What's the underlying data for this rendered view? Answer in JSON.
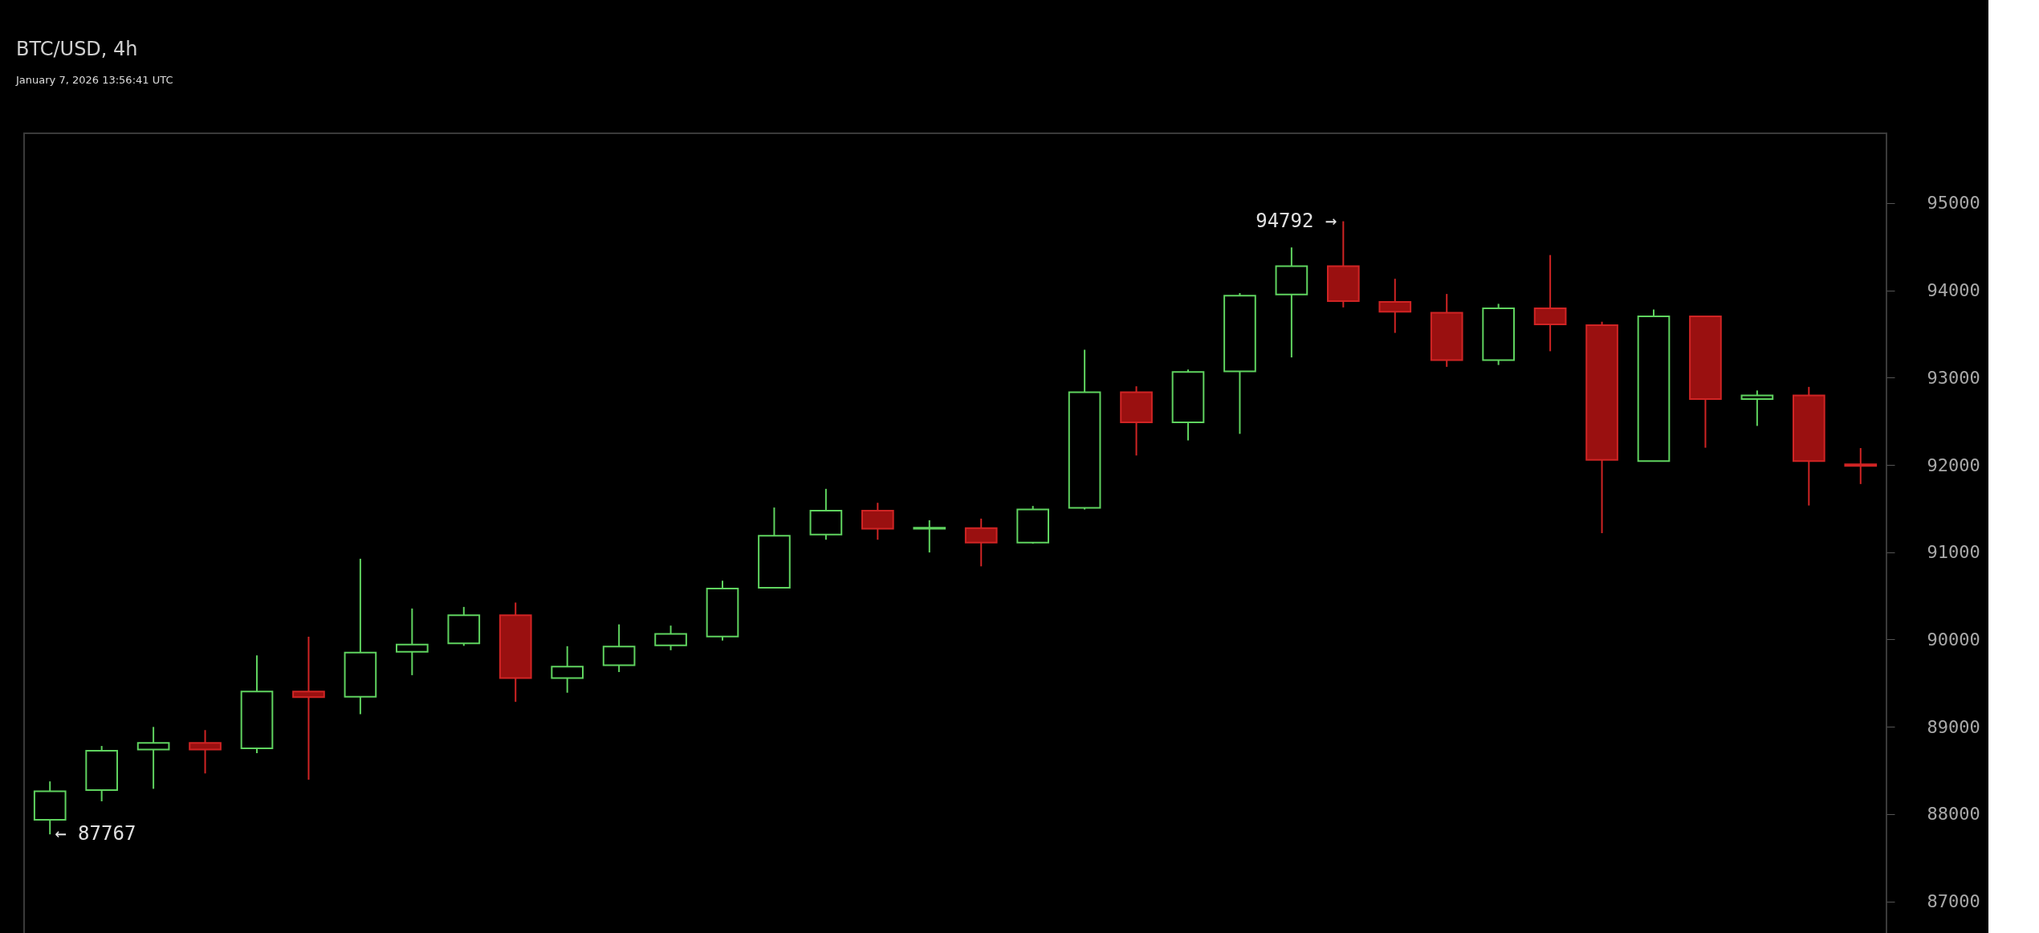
{
  "chart_data": {
    "type": "candlestick",
    "title": "BTC/USD, 4h",
    "categories": [
      null,
      null,
      null,
      null,
      null,
      null,
      null,
      null,
      null,
      null,
      null,
      null,
      null,
      null,
      null,
      null,
      null,
      null,
      null,
      null,
      null,
      null,
      null,
      null,
      null,
      null,
      null,
      null,
      null,
      null,
      null,
      null,
      null,
      null,
      null,
      null
    ],
    "ohlc": [
      [
        87933,
        88374,
        87767,
        88261
      ],
      [
        88274,
        88780,
        88146,
        88725
      ],
      [
        88739,
        88998,
        88289,
        88816
      ],
      [
        88816,
        88962,
        88465,
        88739
      ],
      [
        88752,
        89818,
        88698,
        89404
      ],
      [
        89404,
        90032,
        88393,
        89340
      ],
      [
        89344,
        90925,
        89144,
        89850
      ],
      [
        89859,
        90355,
        89591,
        89941
      ],
      [
        89955,
        90373,
        89927,
        90278
      ],
      [
        90278,
        90423,
        89285,
        89558
      ],
      [
        89558,
        89923,
        89390,
        89690
      ],
      [
        89704,
        90173,
        89627,
        89918
      ],
      [
        89932,
        90159,
        89877,
        90063
      ],
      [
        90033,
        90674,
        89987,
        90583
      ],
      [
        90592,
        91512,
        90592,
        91189
      ],
      [
        91202,
        91726,
        91143,
        91476
      ],
      [
        91476,
        91566,
        91143,
        91270
      ],
      [
        91270,
        91366,
        90997,
        91280
      ],
      [
        91275,
        91385,
        90838,
        91111
      ],
      [
        91111,
        91530,
        91097,
        91489
      ],
      [
        91508,
        93320,
        91489,
        92832
      ],
      [
        92832,
        92901,
        92108,
        92487
      ],
      [
        92487,
        93092,
        92282,
        93065
      ],
      [
        93073,
        93969,
        92356,
        93939
      ],
      [
        93954,
        94492,
        93232,
        94277
      ],
      [
        94277,
        94792,
        93805,
        93877
      ],
      [
        93867,
        94133,
        93513,
        93755
      ],
      [
        93744,
        93959,
        93124,
        93201
      ],
      [
        93201,
        93846,
        93145,
        93795
      ],
      [
        93795,
        94405,
        93303,
        93610
      ],
      [
        93601,
        93640,
        91218,
        92058
      ],
      [
        92043,
        93780,
        92043,
        93703
      ],
      [
        93703,
        93703,
        92197,
        92755
      ],
      [
        92755,
        92853,
        92447,
        92796
      ],
      [
        92796,
        92894,
        91535,
        92043
      ],
      [
        92008,
        92193,
        91781,
        91988
      ]
    ],
    "ylim": [
      86600,
      95800
    ],
    "yticks": [
      87000,
      88000,
      89000,
      90000,
      91000,
      92000,
      93000,
      94000,
      95000
    ],
    "annotations": [
      "January 7, 2026 13:56:41 UTC",
      "94792 →",
      "← 87767"
    ]
  }
}
